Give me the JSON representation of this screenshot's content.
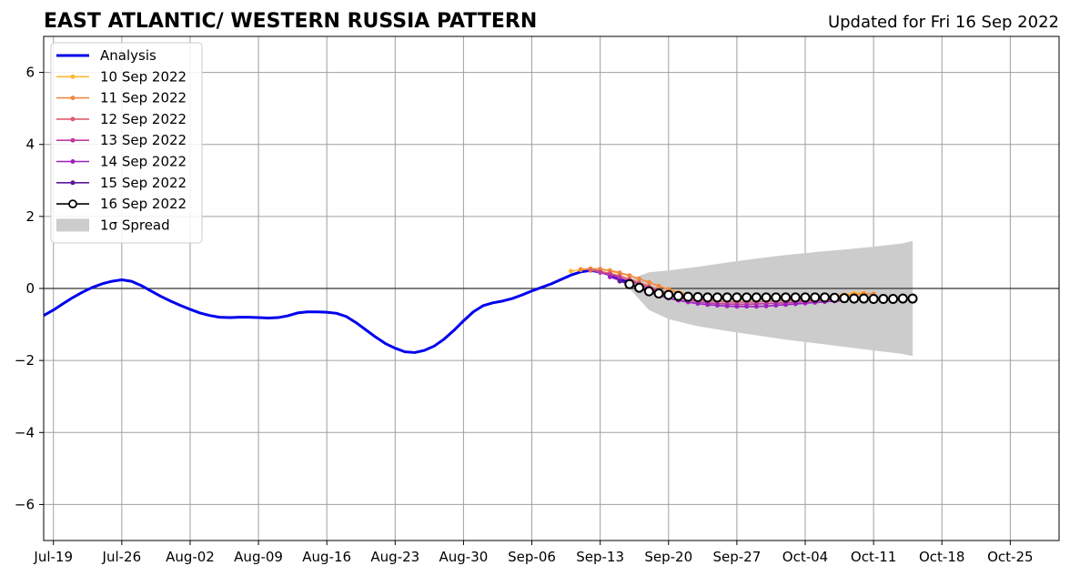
{
  "header": {
    "title": "EAST ATLANTIC/ WESTERN RUSSIA PATTERN",
    "updated": "Updated for Fri 16 Sep 2022"
  },
  "chart_data": {
    "type": "line",
    "title": "EAST ATLANTIC/ WESTERN RUSSIA PATTERN",
    "xlabel": "",
    "ylabel": "",
    "xlim": [
      "2022-07-18",
      "2022-10-30"
    ],
    "ylim": [
      -7,
      7
    ],
    "grid": true,
    "legend_position": "upper-left",
    "x_ticks": [
      {
        "date": "2022-07-19",
        "label": "Jul-19"
      },
      {
        "date": "2022-07-26",
        "label": "Jul-26"
      },
      {
        "date": "2022-08-02",
        "label": "Aug-02"
      },
      {
        "date": "2022-08-09",
        "label": "Aug-09"
      },
      {
        "date": "2022-08-16",
        "label": "Aug-16"
      },
      {
        "date": "2022-08-23",
        "label": "Aug-23"
      },
      {
        "date": "2022-08-30",
        "label": "Aug-30"
      },
      {
        "date": "2022-09-06",
        "label": "Sep-06"
      },
      {
        "date": "2022-09-13",
        "label": "Sep-13"
      },
      {
        "date": "2022-09-20",
        "label": "Sep-20"
      },
      {
        "date": "2022-09-27",
        "label": "Sep-27"
      },
      {
        "date": "2022-10-04",
        "label": "Oct-04"
      },
      {
        "date": "2022-10-11",
        "label": "Oct-11"
      },
      {
        "date": "2022-10-18",
        "label": "Oct-18"
      },
      {
        "date": "2022-10-25",
        "label": "Oct-25"
      }
    ],
    "y_ticks": [
      {
        "value": 6,
        "label": "6"
      },
      {
        "value": 4,
        "label": "4"
      },
      {
        "value": 2,
        "label": "2"
      },
      {
        "value": 0,
        "label": "0"
      },
      {
        "value": -2,
        "label": "−2"
      },
      {
        "value": -4,
        "label": "−4"
      },
      {
        "value": -6,
        "label": "−6"
      }
    ],
    "spread": {
      "name": "1σ Spread",
      "color": "#cccccc",
      "x": [
        "2022-09-16",
        "2022-09-18",
        "2022-09-20",
        "2022-09-23",
        "2022-09-26",
        "2022-09-29",
        "2022-10-02",
        "2022-10-05",
        "2022-10-08",
        "2022-10-11",
        "2022-10-14",
        "2022-10-15"
      ],
      "upper": [
        0.25,
        0.45,
        0.5,
        0.6,
        0.72,
        0.83,
        0.93,
        1.01,
        1.08,
        1.16,
        1.25,
        1.32
      ],
      "lower": [
        0.0,
        -0.6,
        -0.85,
        -1.05,
        -1.18,
        -1.3,
        -1.42,
        -1.52,
        -1.62,
        -1.72,
        -1.82,
        -1.88
      ]
    },
    "series": [
      {
        "name": "Analysis",
        "color": "#0000ee",
        "marker": "none",
        "x": [
          "2022-07-18",
          "2022-07-19",
          "2022-07-20",
          "2022-07-21",
          "2022-07-22",
          "2022-07-23",
          "2022-07-24",
          "2022-07-25",
          "2022-07-26",
          "2022-07-27",
          "2022-07-28",
          "2022-07-29",
          "2022-07-30",
          "2022-07-31",
          "2022-08-01",
          "2022-08-02",
          "2022-08-03",
          "2022-08-04",
          "2022-08-05",
          "2022-08-06",
          "2022-08-07",
          "2022-08-08",
          "2022-08-09",
          "2022-08-10",
          "2022-08-11",
          "2022-08-12",
          "2022-08-13",
          "2022-08-14",
          "2022-08-15",
          "2022-08-16",
          "2022-08-17",
          "2022-08-18",
          "2022-08-19",
          "2022-08-20",
          "2022-08-21",
          "2022-08-22",
          "2022-08-23",
          "2022-08-24",
          "2022-08-25",
          "2022-08-26",
          "2022-08-27",
          "2022-08-28",
          "2022-08-29",
          "2022-08-30",
          "2022-08-31",
          "2022-09-01",
          "2022-09-02",
          "2022-09-03",
          "2022-09-04",
          "2022-09-05",
          "2022-09-06",
          "2022-09-07",
          "2022-09-08",
          "2022-09-09",
          "2022-09-10",
          "2022-09-11",
          "2022-09-12",
          "2022-09-13",
          "2022-09-14",
          "2022-09-15",
          "2022-09-16"
        ],
        "values": [
          -0.75,
          -0.6,
          -0.42,
          -0.25,
          -0.1,
          0.03,
          0.13,
          0.2,
          0.24,
          0.2,
          0.08,
          -0.07,
          -0.22,
          -0.35,
          -0.47,
          -0.58,
          -0.68,
          -0.75,
          -0.8,
          -0.81,
          -0.8,
          -0.8,
          -0.81,
          -0.82,
          -0.81,
          -0.76,
          -0.68,
          -0.65,
          -0.65,
          -0.66,
          -0.69,
          -0.78,
          -0.95,
          -1.15,
          -1.35,
          -1.53,
          -1.66,
          -1.76,
          -1.78,
          -1.72,
          -1.6,
          -1.41,
          -1.17,
          -0.9,
          -0.65,
          -0.48,
          -0.4,
          -0.35,
          -0.28,
          -0.18,
          -0.07,
          0.03,
          0.13,
          0.25,
          0.37,
          0.46,
          0.5,
          0.46,
          0.38,
          0.28,
          0.15
        ]
      },
      {
        "name": "10 Sep 2022",
        "color": "#ffb833",
        "marker": "small-dot",
        "x": [
          "2022-09-10",
          "2022-09-11",
          "2022-09-12",
          "2022-09-13",
          "2022-09-14",
          "2022-09-15",
          "2022-09-16",
          "2022-09-17",
          "2022-09-18",
          "2022-09-19",
          "2022-09-20",
          "2022-09-21",
          "2022-09-22",
          "2022-09-23",
          "2022-09-24",
          "2022-09-25",
          "2022-09-26",
          "2022-09-27",
          "2022-09-28",
          "2022-09-29",
          "2022-09-30",
          "2022-10-01",
          "2022-10-02",
          "2022-10-03",
          "2022-10-04",
          "2022-10-05",
          "2022-10-06",
          "2022-10-07",
          "2022-10-08",
          "2022-10-09",
          "2022-10-10"
        ],
        "values": [
          0.48,
          0.52,
          0.54,
          0.53,
          0.48,
          0.42,
          0.35,
          0.27,
          0.17,
          0.07,
          -0.02,
          -0.1,
          -0.16,
          -0.2,
          -0.24,
          -0.26,
          -0.27,
          -0.28,
          -0.28,
          -0.28,
          -0.28,
          -0.27,
          -0.27,
          -0.26,
          -0.25,
          -0.24,
          -0.22,
          -0.2,
          -0.17,
          -0.13,
          -0.12
        ]
      },
      {
        "name": "11 Sep 2022",
        "color": "#f08a40",
        "marker": "small-dot",
        "x": [
          "2022-09-11",
          "2022-09-12",
          "2022-09-13",
          "2022-09-14",
          "2022-09-15",
          "2022-09-16",
          "2022-09-17",
          "2022-09-18",
          "2022-09-19",
          "2022-09-20",
          "2022-09-21",
          "2022-09-22",
          "2022-09-23",
          "2022-09-24",
          "2022-09-25",
          "2022-09-26",
          "2022-09-27",
          "2022-09-28",
          "2022-09-29",
          "2022-09-30",
          "2022-10-01",
          "2022-10-02",
          "2022-10-03",
          "2022-10-04",
          "2022-10-05",
          "2022-10-06",
          "2022-10-07",
          "2022-10-08",
          "2022-10-09",
          "2022-10-10",
          "2022-10-11"
        ],
        "values": [
          0.53,
          0.55,
          0.54,
          0.5,
          0.44,
          0.36,
          0.27,
          0.17,
          0.07,
          -0.03,
          -0.12,
          -0.18,
          -0.22,
          -0.25,
          -0.27,
          -0.28,
          -0.29,
          -0.29,
          -0.29,
          -0.29,
          -0.28,
          -0.28,
          -0.27,
          -0.26,
          -0.25,
          -0.23,
          -0.21,
          -0.19,
          -0.17,
          -0.15,
          -0.15
        ]
      },
      {
        "name": "12 Sep 2022",
        "color": "#e05c70",
        "marker": "small-dot",
        "x": [
          "2022-09-12",
          "2022-09-13",
          "2022-09-14",
          "2022-09-15",
          "2022-09-16",
          "2022-09-17",
          "2022-09-18",
          "2022-09-19",
          "2022-09-20",
          "2022-09-21",
          "2022-09-22",
          "2022-09-23",
          "2022-09-24",
          "2022-09-25",
          "2022-09-26",
          "2022-09-27",
          "2022-09-28",
          "2022-09-29",
          "2022-09-30",
          "2022-10-01",
          "2022-10-02",
          "2022-10-03",
          "2022-10-04",
          "2022-10-05",
          "2022-10-06",
          "2022-10-07",
          "2022-10-08",
          "2022-10-09",
          "2022-10-10",
          "2022-10-11"
        ],
        "values": [
          0.5,
          0.47,
          0.42,
          0.35,
          0.26,
          0.16,
          0.06,
          -0.04,
          -0.13,
          -0.21,
          -0.27,
          -0.31,
          -0.34,
          -0.36,
          -0.37,
          -0.38,
          -0.38,
          -0.37,
          -0.36,
          -0.35,
          -0.34,
          -0.33,
          -0.32,
          -0.31,
          -0.3,
          -0.29,
          -0.28,
          -0.27,
          -0.26,
          -0.26
        ]
      },
      {
        "name": "13 Sep 2022",
        "color": "#c03aa0",
        "marker": "small-dot",
        "x": [
          "2022-09-13",
          "2022-09-14",
          "2022-09-15",
          "2022-09-16",
          "2022-09-17",
          "2022-09-18",
          "2022-09-19",
          "2022-09-20",
          "2022-09-21",
          "2022-09-22",
          "2022-09-23",
          "2022-09-24",
          "2022-09-25",
          "2022-09-26",
          "2022-09-27",
          "2022-09-28",
          "2022-09-29",
          "2022-09-30",
          "2022-10-01",
          "2022-10-02",
          "2022-10-03",
          "2022-10-04",
          "2022-10-05",
          "2022-10-06",
          "2022-10-07",
          "2022-10-08",
          "2022-10-09",
          "2022-10-10"
        ],
        "values": [
          0.44,
          0.38,
          0.3,
          0.21,
          0.11,
          0.01,
          -0.09,
          -0.18,
          -0.26,
          -0.32,
          -0.37,
          -0.4,
          -0.42,
          -0.43,
          -0.44,
          -0.44,
          -0.43,
          -0.42,
          -0.41,
          -0.4,
          -0.38,
          -0.36,
          -0.34,
          -0.32,
          -0.3,
          -0.29,
          -0.28,
          -0.28
        ]
      },
      {
        "name": "14 Sep 2022",
        "color": "#a020c0",
        "marker": "small-dot",
        "x": [
          "2022-09-14",
          "2022-09-15",
          "2022-09-16",
          "2022-09-17",
          "2022-09-18",
          "2022-09-19",
          "2022-09-20",
          "2022-09-21",
          "2022-09-22",
          "2022-09-23",
          "2022-09-24",
          "2022-09-25",
          "2022-09-26",
          "2022-09-27",
          "2022-09-28",
          "2022-09-29",
          "2022-09-30",
          "2022-10-01",
          "2022-10-02",
          "2022-10-03",
          "2022-10-04",
          "2022-10-05",
          "2022-10-06",
          "2022-10-07",
          "2022-10-08"
        ],
        "values": [
          0.32,
          0.22,
          0.11,
          0.0,
          -0.1,
          -0.19,
          -0.27,
          -0.33,
          -0.38,
          -0.42,
          -0.45,
          -0.47,
          -0.49,
          -0.5,
          -0.5,
          -0.5,
          -0.49,
          -0.47,
          -0.45,
          -0.43,
          -0.41,
          -0.39,
          -0.37,
          -0.35,
          -0.34
        ]
      },
      {
        "name": "15 Sep 2022",
        "color": "#5a189a",
        "marker": "small-dot",
        "x": [
          "2022-09-15",
          "2022-09-16",
          "2022-09-17",
          "2022-09-18",
          "2022-09-19",
          "2022-09-20"
        ],
        "values": [
          0.2,
          0.12,
          0.03,
          -0.05,
          -0.12,
          -0.18
        ]
      },
      {
        "name": "16 Sep 2022",
        "color": "#000000",
        "marker": "open-circle",
        "x": [
          "2022-09-16",
          "2022-09-17",
          "2022-09-18",
          "2022-09-19",
          "2022-09-20",
          "2022-09-21",
          "2022-09-22",
          "2022-09-23",
          "2022-09-24",
          "2022-09-25",
          "2022-09-26",
          "2022-09-27",
          "2022-09-28",
          "2022-09-29",
          "2022-09-30",
          "2022-10-01",
          "2022-10-02",
          "2022-10-03",
          "2022-10-04",
          "2022-10-05",
          "2022-10-06",
          "2022-10-07",
          "2022-10-08",
          "2022-10-09",
          "2022-10-10",
          "2022-10-11",
          "2022-10-12",
          "2022-10-13",
          "2022-10-14",
          "2022-10-15"
        ],
        "values": [
          0.12,
          0.02,
          -0.08,
          -0.14,
          -0.18,
          -0.21,
          -0.23,
          -0.24,
          -0.25,
          -0.25,
          -0.25,
          -0.25,
          -0.25,
          -0.25,
          -0.25,
          -0.25,
          -0.25,
          -0.25,
          -0.25,
          -0.25,
          -0.25,
          -0.26,
          -0.27,
          -0.28,
          -0.28,
          -0.29,
          -0.29,
          -0.29,
          -0.28,
          -0.28
        ]
      }
    ],
    "legend": [
      {
        "label": "Analysis",
        "color": "#0000ee",
        "kind": "thick-line"
      },
      {
        "label": "10 Sep 2022",
        "color": "#ffb833",
        "kind": "line-dot"
      },
      {
        "label": "11 Sep 2022",
        "color": "#f08a40",
        "kind": "line-dot"
      },
      {
        "label": "12 Sep 2022",
        "color": "#e05c70",
        "kind": "line-dot"
      },
      {
        "label": "13 Sep 2022",
        "color": "#c03aa0",
        "kind": "line-dot"
      },
      {
        "label": "14 Sep 2022",
        "color": "#a020c0",
        "kind": "line-dot"
      },
      {
        "label": "15 Sep 2022",
        "color": "#5a189a",
        "kind": "line-dot"
      },
      {
        "label": "16 Sep 2022",
        "color": "#000000",
        "kind": "line-circle"
      },
      {
        "label": "1σ Spread",
        "color": "#cccccc",
        "kind": "patch"
      }
    ]
  }
}
